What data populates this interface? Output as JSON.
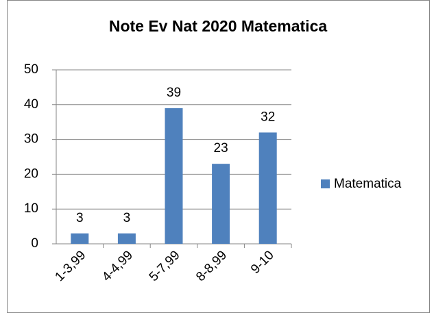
{
  "chart_data": {
    "type": "bar",
    "title": "Note Ev Nat 2020 Matematica",
    "categories": [
      "1-3,99",
      "4-4,99",
      "5-7,99",
      "8-8,99",
      "9-10"
    ],
    "series": [
      {
        "name": "Matematica",
        "color": "#4f81bd",
        "values": [
          3,
          3,
          39,
          23,
          32
        ]
      }
    ],
    "ylim": [
      0,
      50
    ],
    "yticks": [
      0,
      10,
      20,
      30,
      40,
      50
    ],
    "grid": true,
    "data_labels": true,
    "legend": "right"
  }
}
